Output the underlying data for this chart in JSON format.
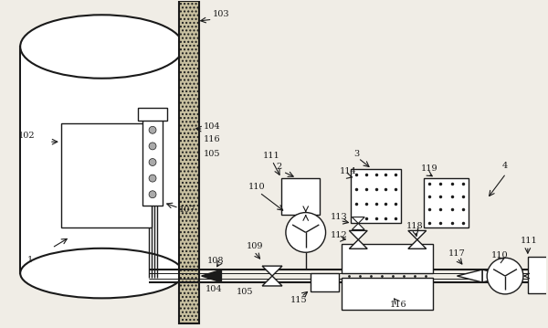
{
  "bg_color": "#f0ede6",
  "line_color": "#1a1a1a",
  "wall_color": "#c8c0a0",
  "white": "#ffffff",
  "gray_dot": "#888888",
  "figsize": [
    6.0,
    3.59
  ],
  "dpi": 100
}
